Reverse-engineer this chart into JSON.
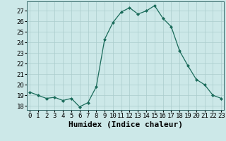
{
  "x": [
    0,
    1,
    2,
    3,
    4,
    5,
    6,
    7,
    8,
    9,
    10,
    11,
    12,
    13,
    14,
    15,
    16,
    17,
    18,
    19,
    20,
    21,
    22,
    23
  ],
  "y": [
    19.3,
    19.0,
    18.7,
    18.8,
    18.5,
    18.7,
    17.9,
    18.3,
    19.8,
    24.3,
    25.9,
    26.9,
    27.3,
    26.7,
    27.0,
    27.5,
    26.3,
    25.5,
    23.2,
    21.8,
    20.5,
    20.0,
    19.0,
    18.7
  ],
  "line_color": "#1a6b5a",
  "marker": "D",
  "marker_size": 2.0,
  "bg_color": "#cce8e8",
  "grid_color": "#aacccc",
  "xlabel": "Humidex (Indice chaleur)",
  "xlabel_fontsize": 8,
  "tick_fontsize": 6.5,
  "ylim": [
    17.6,
    27.9
  ],
  "yticks": [
    18,
    19,
    20,
    21,
    22,
    23,
    24,
    25,
    26,
    27
  ],
  "xlim": [
    -0.3,
    23.3
  ],
  "xtick_positions": [
    0,
    1,
    2,
    3,
    4,
    5,
    6,
    7,
    8,
    9,
    10,
    11,
    12,
    13,
    14,
    15,
    16,
    17,
    18,
    19,
    20,
    21,
    22,
    23
  ],
  "xtick_labels": [
    "0",
    "1",
    "2",
    "3",
    "4",
    "5",
    "6",
    "7",
    "8",
    "9",
    "10",
    "11",
    "12",
    "13",
    "14",
    "15",
    "16",
    "17",
    "18",
    "19",
    "20",
    "21",
    "22",
    "23"
  ]
}
